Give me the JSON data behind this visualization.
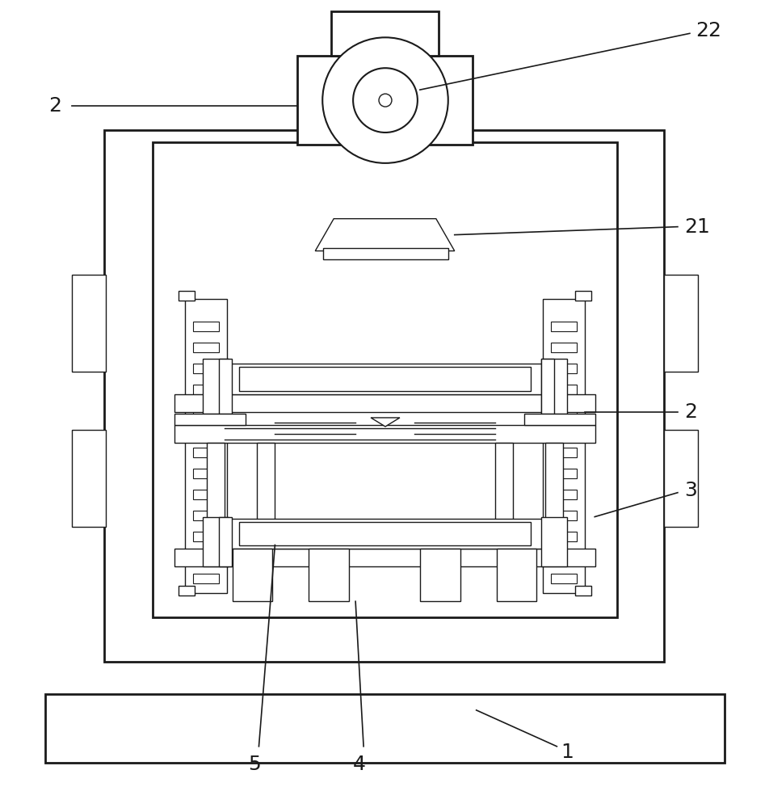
{
  "bg_color": "#ffffff",
  "line_color": "#1a1a1a",
  "lw_main": 2.0,
  "lw_med": 1.5,
  "lw_thin": 1.0,
  "fig_width": 9.53,
  "fig_height": 10.0,
  "label_fs": 18
}
